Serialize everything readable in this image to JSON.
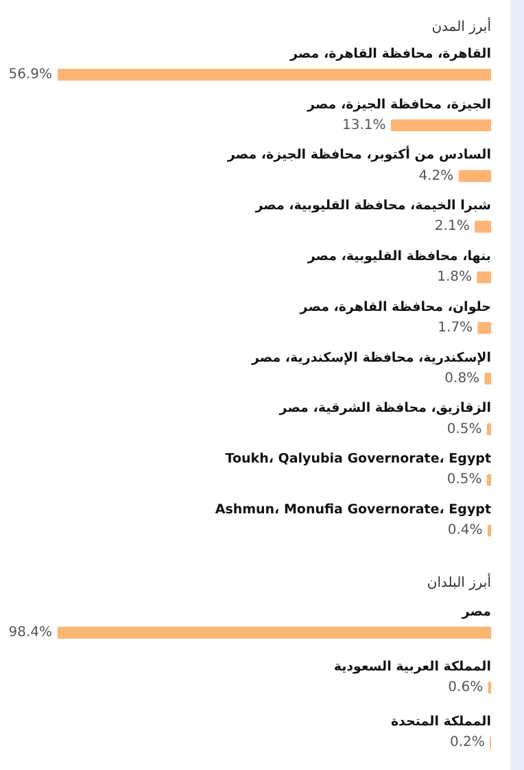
{
  "chart_data": [
    {
      "type": "bar",
      "orientation": "horizontal",
      "title": "أبرز المدن",
      "categories": [
        "القاهرة، محافظة القاهرة، مصر",
        "الجيزة، محافظة الجيزة، مصر",
        "السادس من أكتوبر، محافظة الجيزة، مصر",
        "شبرا الخيمة، محافظة القليوبية، مصر",
        "بنها، محافظة القليوبية، مصر",
        "حلوان، محافظة القاهرة، مصر",
        "الإسكندرية، محافظة الإسكندرية، مصر",
        "الزقازيق، محافظة الشرقية، مصر",
        "Toukh، Qalyubia Governorate، Egypt",
        "Ashmun، Monufia Governorate، Egypt"
      ],
      "values": [
        56.9,
        13.1,
        4.2,
        2.1,
        1.8,
        1.7,
        0.8,
        0.5,
        0.5,
        0.4
      ],
      "value_labels": [
        "56.9%",
        "13.1%",
        "4.2%",
        "2.1%",
        "1.8%",
        "1.7%",
        "0.8%",
        "0.5%",
        "0.5%",
        "0.4%"
      ],
      "color": "#fcb574",
      "legend": false,
      "tick_labels": false
    },
    {
      "type": "bar",
      "orientation": "horizontal",
      "title": "أبرز البلدان",
      "categories": [
        "مصر",
        "المملكة العربية السعودية",
        "المملكة المتحدة"
      ],
      "values": [
        98.4,
        0.6,
        0.2
      ],
      "value_labels": [
        "98.4%",
        "0.6%",
        "0.2%"
      ],
      "color": "#fcb574",
      "legend": false,
      "tick_labels": false
    }
  ]
}
